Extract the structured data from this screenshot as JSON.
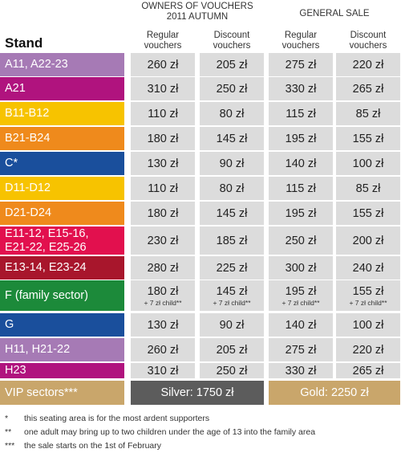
{
  "header": {
    "owners_group": "OWNERS OF VOUCHERS",
    "owners_sub": "2011 AUTUMN",
    "general_group": "GENERAL SALE",
    "stand_label": "Stand",
    "regular_line1": "Regular",
    "regular_line2": "vouchers",
    "discount_line1": "Discount",
    "discount_line2": "vouchers"
  },
  "rows": [
    {
      "stand": "A11, A22-23",
      "color": "#a67ab5",
      "prices": [
        "260 zł",
        "205 zł",
        "275 zł",
        "220 zł"
      ]
    },
    {
      "stand": "A21",
      "color": "#b0137e",
      "prices": [
        "310 zł",
        "250 zł",
        "330 zł",
        "265 zł"
      ]
    },
    {
      "stand": "B11-B12",
      "color": "#f7c300",
      "prices": [
        "110 zł",
        "80 zł",
        "115 zł",
        "85 zł"
      ]
    },
    {
      "stand": "B21-B24",
      "color": "#ef8a1c",
      "prices": [
        "180 zł",
        "145 zł",
        "195 zł",
        "155 zł"
      ]
    },
    {
      "stand": "C*",
      "color": "#1a4f9c",
      "prices": [
        "130 zł",
        "90 zł",
        "140 zł",
        "100 zł"
      ]
    },
    {
      "stand": "D11-D12",
      "color": "#f7c300",
      "prices": [
        "110 zł",
        "80 zł",
        "115 zł",
        "85 zł"
      ]
    },
    {
      "stand": "D21-D24",
      "color": "#ef8a1c",
      "prices": [
        "180 zł",
        "145 zł",
        "195 zł",
        "155 zł"
      ]
    },
    {
      "stand": "E11-12, E15-16,",
      "stand2": "E21-22, E25-26",
      "color": "#e2104e",
      "prices": [
        "230 zł",
        "185 zł",
        "250 zł",
        "200 zł"
      ]
    },
    {
      "stand": "E13-14, E23-24",
      "color": "#a8162c",
      "prices": [
        "280 zł",
        "225 zł",
        "300 zł",
        "240 zł"
      ]
    },
    {
      "stand": "F (family sector)",
      "color": "#1c8a3a",
      "prices": [
        "180 zł",
        "145 zł",
        "195 zł",
        "155 zł"
      ],
      "note": "+ 7 zł child**"
    },
    {
      "stand": "G",
      "color": "#1a4f9c",
      "prices": [
        "130 zł",
        "90 zł",
        "140 zł",
        "100 zł"
      ]
    },
    {
      "stand": "H11, H21-22",
      "color": "#a67ab5",
      "prices": [
        "260 zł",
        "205 zł",
        "275 zł",
        "220 zł"
      ]
    },
    {
      "stand": "H23",
      "color": "#b0137e",
      "prices": [
        "310 zł",
        "250 zł",
        "330 zł",
        "265 zł"
      ]
    }
  ],
  "vip": {
    "label": "VIP sectors***",
    "silver": "Silver: 1750 zł",
    "gold": "Gold: 2250 zł"
  },
  "footnotes": [
    {
      "mark": "*",
      "text": "this seating area is for the most ardent supporters"
    },
    {
      "mark": "**",
      "text": "one adult may bring up to two children under the age of 13 into the family area"
    },
    {
      "mark": "***",
      "text": "the sale starts on the 1st of February"
    }
  ]
}
